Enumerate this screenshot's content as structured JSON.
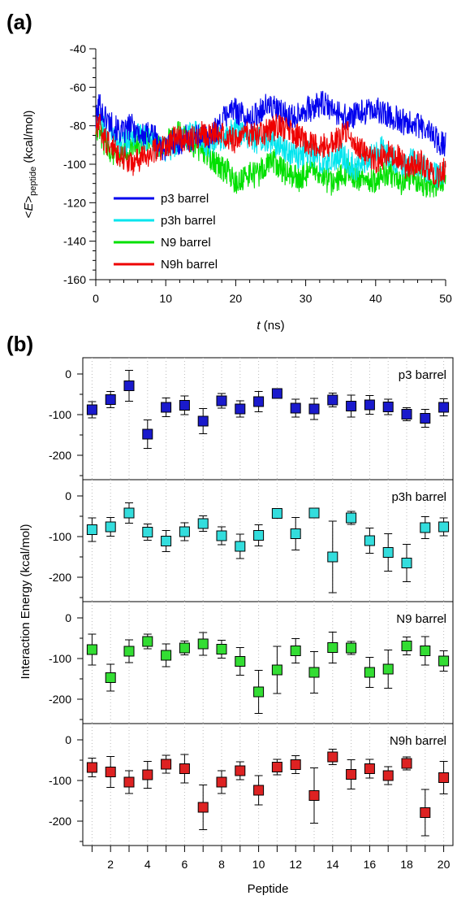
{
  "figure": {
    "panel_a_label": "(a)",
    "panel_b_label": "(b)"
  },
  "chart_data": [
    {
      "type": "line",
      "ylabel_prefix": "<",
      "ylabel_var": "E",
      "ylabel_suffix": ">",
      "ylabel_sub": "peptide",
      "ylabel_unit": " (kcal/mol)",
      "xlabel_var": "t",
      "xlabel_unit": " (ns)",
      "xlim": [
        0,
        50
      ],
      "ylim": [
        -160,
        -40
      ],
      "xticks": [
        0,
        10,
        20,
        30,
        40,
        50
      ],
      "yticks": [
        -40,
        -60,
        -80,
        -100,
        -120,
        -140,
        -160
      ],
      "legend_position": "bottom-left",
      "series": [
        {
          "name": "p3 barrel",
          "color": "#0000ee",
          "x": [
            0,
            0.5,
            1,
            2,
            3,
            4,
            5,
            6,
            7,
            8,
            9,
            10,
            11,
            12,
            13,
            14,
            15,
            16,
            17,
            18,
            19,
            20,
            21,
            22,
            23,
            24,
            25,
            26,
            27,
            28,
            29,
            30,
            31,
            32,
            33,
            34,
            35,
            36,
            37,
            38,
            39,
            40,
            41,
            42,
            43,
            44,
            45,
            46,
            47,
            48,
            49,
            50
          ],
          "y": [
            -78,
            -68,
            -74,
            -78,
            -82,
            -84,
            -80,
            -83,
            -86,
            -82,
            -90,
            -92,
            -88,
            -89,
            -86,
            -88,
            -84,
            -86,
            -83,
            -78,
            -72,
            -72,
            -74,
            -78,
            -74,
            -70,
            -70,
            -72,
            -74,
            -76,
            -73,
            -71,
            -72,
            -68,
            -70,
            -72,
            -74,
            -76,
            -75,
            -73,
            -72,
            -72,
            -73,
            -75,
            -76,
            -78,
            -77,
            -80,
            -82,
            -84,
            -88,
            -90
          ]
        },
        {
          "name": "p3h barrel",
          "color": "#00e5ee",
          "x": [
            0,
            0.5,
            1,
            2,
            3,
            4,
            5,
            6,
            7,
            8,
            9,
            10,
            11,
            12,
            13,
            14,
            15,
            16,
            17,
            18,
            19,
            20,
            21,
            22,
            23,
            24,
            25,
            26,
            27,
            28,
            29,
            30,
            31,
            32,
            33,
            34,
            35,
            36,
            37,
            38,
            39,
            40,
            41,
            42,
            43,
            44,
            45,
            46,
            47,
            48,
            49,
            50
          ],
          "y": [
            -80,
            -75,
            -80,
            -84,
            -88,
            -90,
            -86,
            -84,
            -86,
            -88,
            -92,
            -94,
            -90,
            -88,
            -86,
            -84,
            -86,
            -90,
            -88,
            -86,
            -84,
            -82,
            -84,
            -86,
            -88,
            -86,
            -88,
            -90,
            -92,
            -94,
            -96,
            -94,
            -95,
            -98,
            -100,
            -97,
            -95,
            -98,
            -102,
            -100,
            -96,
            -94,
            -92,
            -96,
            -98,
            -100,
            -98,
            -100,
            -102,
            -104,
            -106,
            -105
          ]
        },
        {
          "name": "N9 barrel",
          "color": "#00e000",
          "x": [
            0,
            0.5,
            1,
            2,
            3,
            4,
            5,
            6,
            7,
            8,
            9,
            10,
            11,
            12,
            13,
            14,
            15,
            16,
            17,
            18,
            19,
            20,
            21,
            22,
            23,
            24,
            25,
            26,
            27,
            28,
            29,
            30,
            31,
            32,
            33,
            34,
            35,
            36,
            37,
            38,
            39,
            40,
            41,
            42,
            43,
            44,
            45,
            46,
            47,
            48,
            49,
            50
          ],
          "y": [
            -80,
            -82,
            -88,
            -92,
            -95,
            -96,
            -92,
            -90,
            -88,
            -86,
            -90,
            -88,
            -86,
            -84,
            -86,
            -90,
            -92,
            -94,
            -98,
            -102,
            -104,
            -110,
            -108,
            -105,
            -106,
            -102,
            -98,
            -100,
            -104,
            -106,
            -108,
            -105,
            -104,
            -106,
            -108,
            -110,
            -106,
            -104,
            -106,
            -108,
            -110,
            -108,
            -106,
            -104,
            -108,
            -110,
            -106,
            -108,
            -110,
            -112,
            -110,
            -108
          ]
        },
        {
          "name": "N9h barrel",
          "color": "#ee0000",
          "x": [
            0,
            0.5,
            1,
            2,
            3,
            4,
            5,
            6,
            7,
            8,
            9,
            10,
            11,
            12,
            13,
            14,
            15,
            16,
            17,
            18,
            19,
            20,
            21,
            22,
            23,
            24,
            25,
            26,
            27,
            28,
            29,
            30,
            31,
            32,
            33,
            34,
            35,
            36,
            37,
            38,
            39,
            40,
            41,
            42,
            43,
            44,
            45,
            46,
            47,
            48,
            49,
            50
          ],
          "y": [
            -82,
            -80,
            -86,
            -90,
            -94,
            -96,
            -100,
            -98,
            -96,
            -94,
            -92,
            -90,
            -88,
            -86,
            -88,
            -86,
            -84,
            -86,
            -84,
            -82,
            -86,
            -88,
            -86,
            -84,
            -86,
            -84,
            -82,
            -80,
            -82,
            -84,
            -86,
            -88,
            -90,
            -92,
            -90,
            -88,
            -86,
            -84,
            -88,
            -92,
            -96,
            -98,
            -96,
            -94,
            -96,
            -100,
            -102,
            -98,
            -100,
            -104,
            -106,
            -102
          ]
        }
      ]
    },
    {
      "type": "scatter",
      "ylabel": "Interaction Energy (kcal/mol)",
      "xlabel": "Peptide",
      "xlim": [
        0.5,
        20.5
      ],
      "xticks": [
        2,
        4,
        6,
        8,
        10,
        12,
        14,
        16,
        18,
        20
      ],
      "yticks": [
        0,
        -100,
        -200
      ],
      "ylim": [
        -260,
        40
      ],
      "x": [
        1,
        2,
        3,
        4,
        5,
        6,
        7,
        8,
        9,
        10,
        11,
        12,
        13,
        14,
        15,
        16,
        17,
        18,
        19,
        20
      ],
      "series": [
        {
          "name": "p3 barrel",
          "color": "#1a1acc",
          "values": [
            -88,
            -63,
            -29,
            -148,
            -82,
            -77,
            -116,
            -66,
            -86,
            -68,
            -48,
            -84,
            -86,
            -64,
            -79,
            -76,
            -81,
            -99,
            -109,
            -82
          ],
          "errors": [
            20,
            20,
            38,
            35,
            23,
            23,
            31,
            18,
            20,
            25,
            8,
            22,
            26,
            17,
            27,
            23,
            19,
            16,
            22,
            21
          ]
        },
        {
          "name": "p3h barrel",
          "color": "#33dddd",
          "values": [
            -83,
            -76,
            -42,
            -89,
            -111,
            -88,
            -68,
            -98,
            -124,
            -97,
            -43,
            -93,
            -42,
            -150,
            -54,
            -110,
            -139,
            -165,
            -78,
            -76
          ],
          "errors": [
            29,
            23,
            25,
            20,
            26,
            22,
            19,
            22,
            30,
            26,
            5,
            40,
            5,
            88,
            16,
            31,
            46,
            46,
            27,
            22
          ]
        },
        {
          "name": "N9 barrel",
          "color": "#33dd33",
          "values": [
            -78,
            -147,
            -82,
            -58,
            -92,
            -74,
            -64,
            -77,
            -107,
            -182,
            -128,
            -81,
            -134,
            -73,
            -74,
            -134,
            -126,
            -69,
            -81,
            -106
          ],
          "errors": [
            38,
            33,
            28,
            18,
            28,
            17,
            28,
            22,
            34,
            53,
            58,
            30,
            51,
            38,
            16,
            37,
            47,
            22,
            35,
            25
          ]
        },
        {
          "name": "N9h barrel",
          "color": "#dd2222",
          "values": [
            -68,
            -79,
            -104,
            -86,
            -60,
            -71,
            -166,
            -104,
            -76,
            -124,
            -67,
            -61,
            -137,
            -42,
            -85,
            -71,
            -88,
            -58,
            -179,
            -93
          ],
          "errors": [
            23,
            38,
            28,
            33,
            22,
            35,
            55,
            28,
            22,
            36,
            19,
            22,
            68,
            19,
            36,
            23,
            22,
            16,
            57,
            40
          ]
        }
      ]
    }
  ]
}
